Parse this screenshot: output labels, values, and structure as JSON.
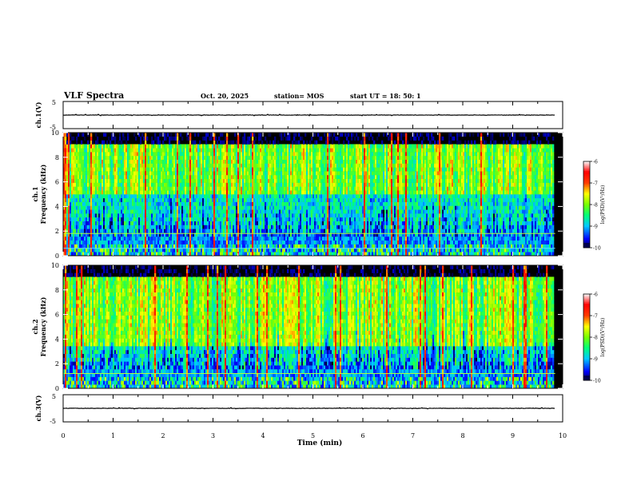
{
  "header": {
    "title": "VLF Spectra",
    "date": "Oct. 20, 2025",
    "station": "station= MOS",
    "start": "start  UT =   18: 50: 1"
  },
  "chart_data": [
    {
      "type": "line",
      "name": "ch1-waveform",
      "ylabel": "ch.1(V)",
      "ylim": [
        -5,
        5
      ],
      "ytick_labels": [
        "5",
        "-5"
      ],
      "level": 0
    },
    {
      "type": "heatmap",
      "name": "ch1-spectrogram",
      "ylabel_top": "ch.1",
      "ylabel": "Frequency (kHz)",
      "ylim": [
        0,
        10
      ],
      "ytick_labels": [
        "0",
        "2",
        "4",
        "6",
        "8",
        "10"
      ],
      "colorbar": {
        "label": "log(PSD)(V²/Hz)",
        "range": [
          -10,
          -6
        ],
        "tick_labels": [
          "-6",
          "-7",
          "-8",
          "-9",
          "-10"
        ],
        "colors": [
          "#ffffff",
          "#ff0000",
          "#ffff00",
          "#00ff00",
          "#00ffff",
          "#0000ff",
          "#000080"
        ]
      },
      "lines_khz": [
        1.8,
        0.6
      ]
    },
    {
      "type": "heatmap",
      "name": "ch2-spectrogram",
      "ylabel_top": "ch.2",
      "ylabel": "Frequency (kHz)",
      "ylim": [
        0,
        10
      ],
      "ytick_labels": [
        "0",
        "2",
        "4",
        "6",
        "8",
        "10"
      ],
      "colorbar": {
        "label": "log(PSD)(V²/Hz)",
        "range": [
          -10,
          -6
        ],
        "tick_labels": [
          "-6",
          "-7",
          "-8",
          "-9",
          "-10"
        ],
        "colors": [
          "#ffffff",
          "#ff0000",
          "#ffff00",
          "#00ff00",
          "#00ffff",
          "#0000ff",
          "#000080"
        ]
      },
      "lines_khz": [
        1.2
      ]
    },
    {
      "type": "line",
      "name": "ch3-waveform",
      "ylabel": "ch.3(V)",
      "ylim": [
        -5,
        5
      ],
      "ytick_labels": [
        "5",
        "-5"
      ],
      "level": 0
    }
  ],
  "xaxis": {
    "label": "Time (min)",
    "xlim": [
      0,
      10
    ],
    "tick_labels": [
      "0",
      "1",
      "2",
      "3",
      "4",
      "5",
      "6",
      "7",
      "8",
      "9",
      "10"
    ],
    "data_end_min": 9.85
  }
}
